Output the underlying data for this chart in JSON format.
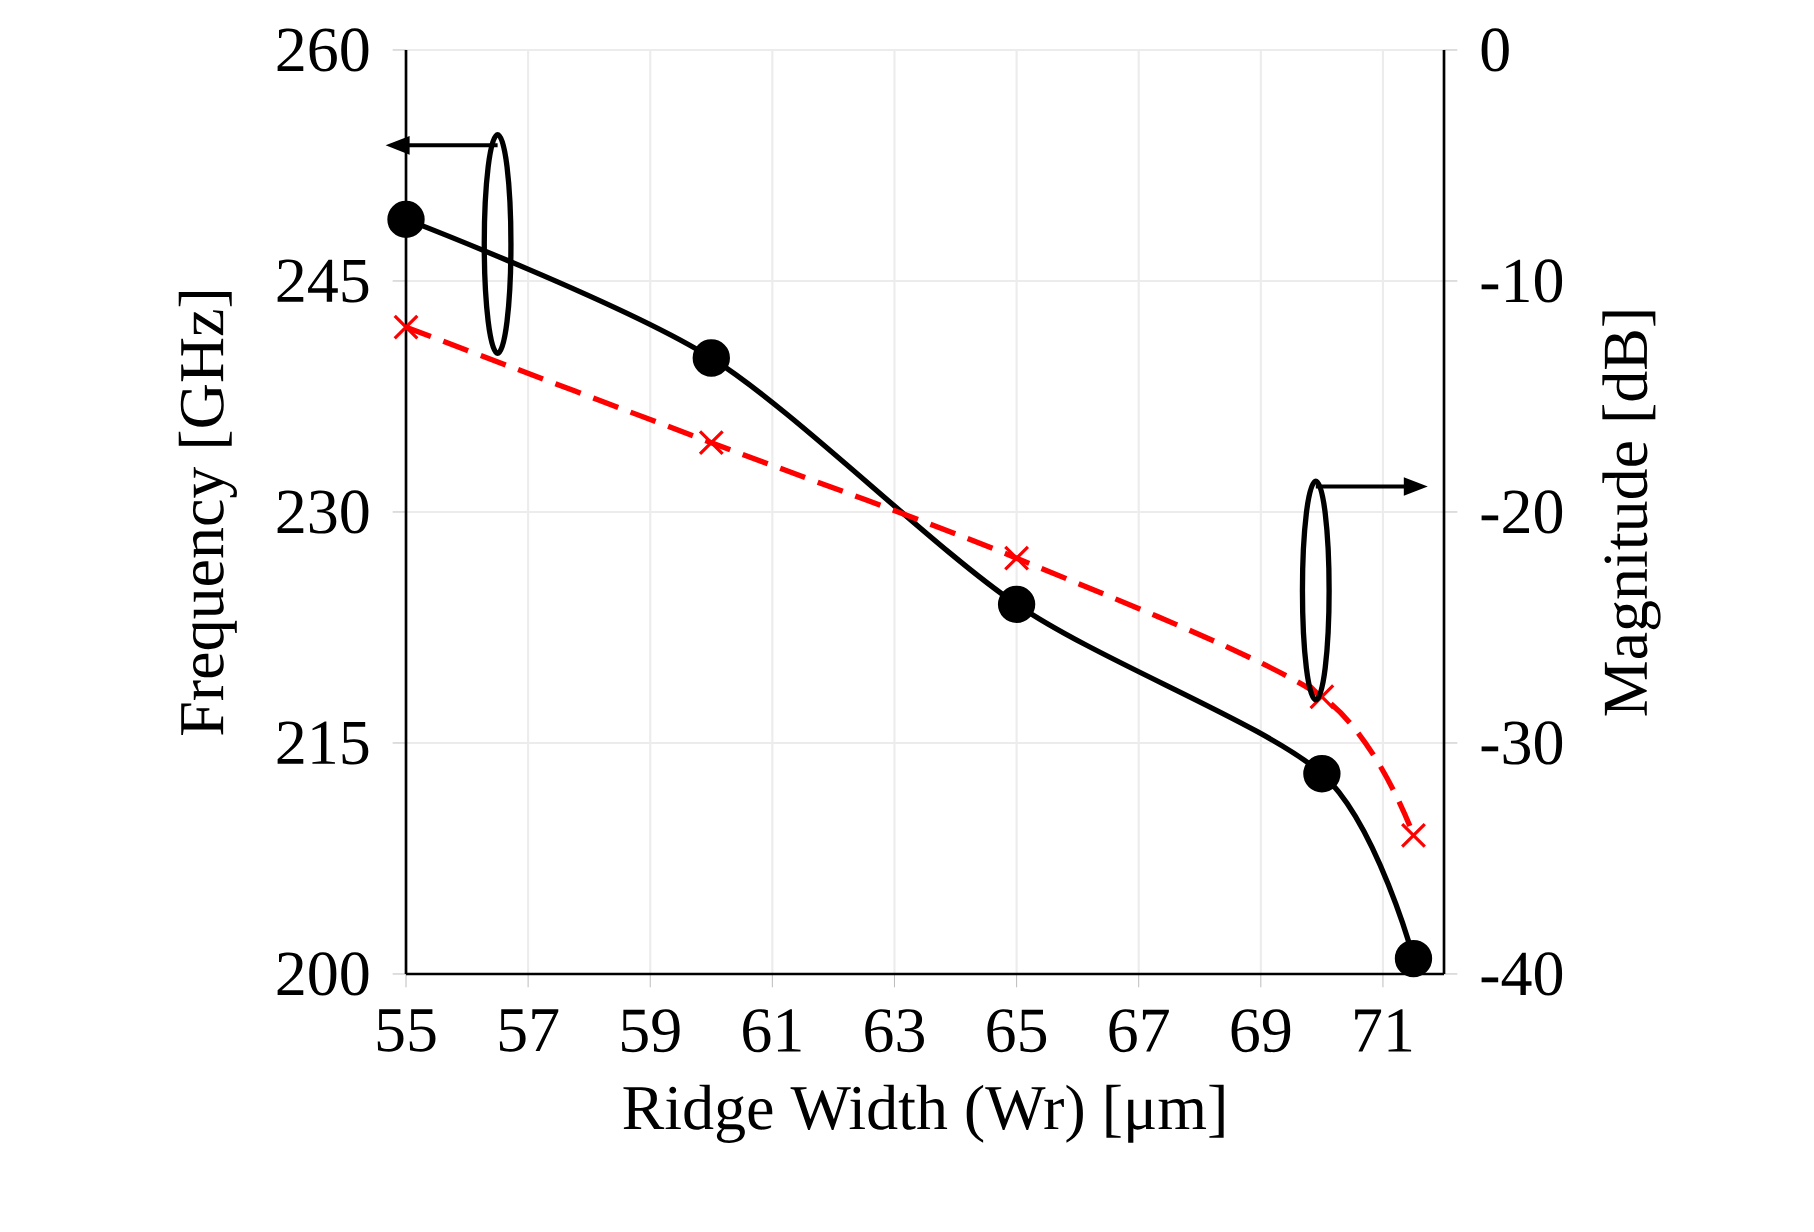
{
  "chart_data": {
    "type": "line",
    "xlabel": "Ridge Width (Wr) [μm]",
    "ylabel": "Frequency [GHz]",
    "y2label": "Magnitude [dB]",
    "x": [
      55,
      60,
      65,
      70,
      71.5
    ],
    "series": [
      {
        "color": "#000000",
        "values": [
          249,
          240,
          224,
          213,
          201
        ],
        "marker": "circle",
        "line_style": "solid"
      },
      {
        "color": "#ff0000",
        "values": [
          -12,
          -17,
          -22,
          -28,
          -34
        ],
        "axis": "y2",
        "marker": "cross",
        "line_style": "dashed"
      }
    ],
    "xlim": [
      55,
      72
    ],
    "xticks": [
      55,
      57,
      59,
      61,
      63,
      65,
      67,
      69,
      71
    ],
    "ylim": [
      200,
      260
    ],
    "yticks": [
      200,
      215,
      230,
      245,
      260
    ],
    "y2lim": [
      -40,
      0
    ],
    "y2ticks": [
      -40,
      -30,
      -20,
      -10,
      0
    ],
    "grid": true
  }
}
